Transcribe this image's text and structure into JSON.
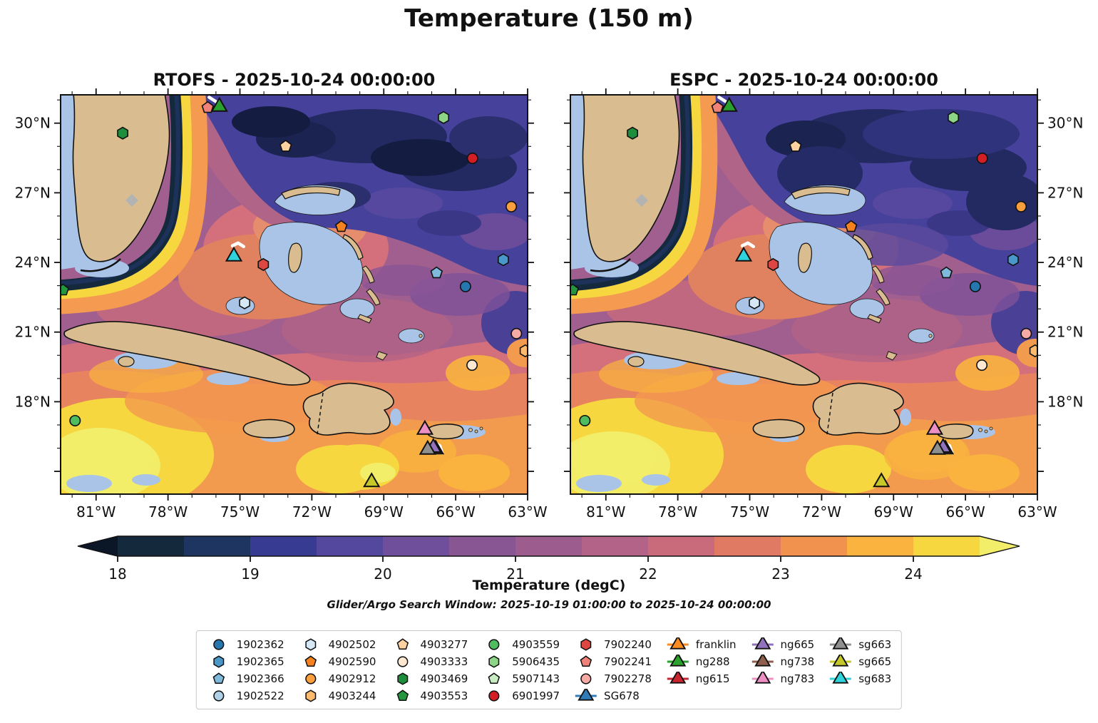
{
  "title": "Temperature (150 m)",
  "panels": [
    {
      "id": "rtofs",
      "title": "RTOFS - 2025-10-24 00:00:00",
      "ylabel_side": "left"
    },
    {
      "id": "espc",
      "title": "ESPC - 2025-10-24 00:00:00",
      "ylabel_side": "right"
    }
  ],
  "axes": {
    "lon_min": 63.0,
    "lon_max": 82.48,
    "lat_top": 31.22,
    "lat_span": 17.2,
    "x_ticks": [
      {
        "deg": 81,
        "label": "81°W"
      },
      {
        "deg": 78,
        "label": "78°W"
      },
      {
        "deg": 75,
        "label": "75°W"
      },
      {
        "deg": 72,
        "label": "72°W"
      },
      {
        "deg": 69,
        "label": "69°W"
      },
      {
        "deg": 66,
        "label": "66°W"
      },
      {
        "deg": 63,
        "label": "63°W"
      }
    ],
    "y_ticks": [
      {
        "deg": 30,
        "label": "30°N"
      },
      {
        "deg": 27,
        "label": "27°N"
      },
      {
        "deg": 24,
        "label": "24°N"
      },
      {
        "deg": 21,
        "label": "21°N"
      },
      {
        "deg": 18,
        "label": "18°N"
      }
    ]
  },
  "colorbar": {
    "label": "Temperature (degC)",
    "ticks": [
      "18",
      "19",
      "20",
      "21",
      "22",
      "23",
      "24"
    ],
    "tick_values": [
      18,
      19,
      20,
      21,
      22,
      23,
      24
    ],
    "segment_start": 18.0,
    "segment_step": 0.5,
    "segments": [
      "#15293d",
      "#1e3562",
      "#383b92",
      "#54489e",
      "#6f4f9b",
      "#875693",
      "#9c5c8e",
      "#b36387",
      "#c96b7b",
      "#e07a63",
      "#f2924f",
      "#f9b33e",
      "#f6d73f"
    ],
    "under_color": "#0b1627",
    "over_color": "#f2ee6a"
  },
  "subtitle": "Glider/Argo Search Window: 2025-10-19 01:00:00 to 2025-10-24 00:00:00",
  "platforms": [
    {
      "id": "1902362",
      "label": "1902362",
      "shape": "circle",
      "color": "#2676b0",
      "glider": false,
      "fx": 0.867,
      "fy": 0.48
    },
    {
      "id": "1902365",
      "label": "1902365",
      "shape": "hexagon",
      "color": "#4a97c9",
      "glider": false,
      "fx": 0.948,
      "fy": 0.413
    },
    {
      "id": "1902366",
      "label": "1902366",
      "shape": "pentagon",
      "color": "#7fb9dc",
      "glider": false,
      "fx": 0.805,
      "fy": 0.446
    },
    {
      "id": "1902522",
      "label": "1902522",
      "shape": "circle",
      "color": "#aed1e7",
      "glider": false,
      "fx": null,
      "fy": null
    },
    {
      "id": "4902502",
      "label": "4902502",
      "shape": "hexagon",
      "color": "#d6e8f5",
      "glider": false,
      "fx": 0.394,
      "fy": 0.521
    },
    {
      "id": "4902590",
      "label": "4902590",
      "shape": "pentagon",
      "color": "#f5821e",
      "glider": false,
      "fx": 0.601,
      "fy": 0.33
    },
    {
      "id": "4902912",
      "label": "4902912",
      "shape": "circle",
      "color": "#fa9f3d",
      "glider": false,
      "fx": 0.965,
      "fy": 0.28
    },
    {
      "id": "4903244",
      "label": "4903244",
      "shape": "hexagon",
      "color": "#fcba6c",
      "glider": false,
      "fx": 0.995,
      "fy": 0.641
    },
    {
      "id": "4903277",
      "label": "4903277",
      "shape": "pentagon",
      "color": "#fdd2a0",
      "glider": false,
      "fx": 0.482,
      "fy": 0.129
    },
    {
      "id": "4903333",
      "label": "4903333",
      "shape": "circle",
      "color": "#fee8d1",
      "glider": false,
      "fx": 0.881,
      "fy": 0.677
    },
    {
      "id": "4903469",
      "label": "4903469",
      "shape": "hexagon",
      "color": "#1d8f3c",
      "glider": false,
      "fx": 0.133,
      "fy": 0.096
    },
    {
      "id": "4903553",
      "label": "4903553",
      "shape": "pentagon",
      "color": "#23963f",
      "glider": false,
      "fx": 0.005,
      "fy": 0.489
    },
    {
      "id": "4903559",
      "label": "4903559",
      "shape": "circle",
      "color": "#4fbc5f",
      "glider": false,
      "fx": 0.031,
      "fy": 0.816
    },
    {
      "id": "5906435",
      "label": "5906435",
      "shape": "hexagon",
      "color": "#8ed687",
      "glider": false,
      "fx": 0.82,
      "fy": 0.057
    },
    {
      "id": "5907143",
      "label": "5907143",
      "shape": "pentagon",
      "color": "#c9ecc4",
      "glider": false,
      "fx": null,
      "fy": null
    },
    {
      "id": "6901997",
      "label": "6901997",
      "shape": "circle",
      "color": "#d21e24",
      "glider": false,
      "fx": 0.882,
      "fy": 0.159
    },
    {
      "id": "7902240",
      "label": "7902240",
      "shape": "hexagon",
      "color": "#dd4743",
      "glider": false,
      "fx": 0.434,
      "fy": 0.425
    },
    {
      "id": "7902241",
      "label": "7902241",
      "shape": "pentagon",
      "color": "#f08379",
      "glider": false,
      "fx": 0.315,
      "fy": 0.032
    },
    {
      "id": "7902278",
      "label": "7902278",
      "shape": "circle",
      "color": "#f6aaa6",
      "glider": false,
      "fx": 0.976,
      "fy": 0.598
    },
    {
      "id": "SG678",
      "label": "SG678",
      "shape": "triangle",
      "color": "#2f7cb8",
      "glider": true,
      "fx": null,
      "fy": null
    },
    {
      "id": "franklin",
      "label": "franklin",
      "shape": "triangle",
      "color": "#fb8c1d",
      "glider": true,
      "fx": null,
      "fy": null
    },
    {
      "id": "ng288",
      "label": "ng288",
      "shape": "triangle",
      "color": "#2aa02e",
      "glider": true,
      "fx": 0.34,
      "fy": 0.03
    },
    {
      "id": "ng615",
      "label": "ng615",
      "shape": "triangle",
      "color": "#ca2430",
      "glider": true,
      "fx": null,
      "fy": null
    },
    {
      "id": "sg683",
      "label": "sg683",
      "shape": "triangle",
      "color": "#30d2dc",
      "glider": true,
      "fx": 0.371,
      "fy": 0.405
    },
    {
      "id": "ng783",
      "label": "ng783",
      "shape": "triangle",
      "color": "#ee8fc4",
      "glider": true,
      "fx": 0.78,
      "fy": 0.839
    },
    {
      "id": "ng738",
      "label": "ng738",
      "shape": "triangle",
      "color": "#90604e",
      "glider": true,
      "fx": 0.803,
      "fy": 0.888
    },
    {
      "id": "ng665",
      "label": "ng665",
      "shape": "triangle",
      "color": "#9372bd",
      "glider": true,
      "fx": 0.798,
      "fy": 0.884
    },
    {
      "id": "sg663",
      "label": "sg663",
      "shape": "triangle",
      "color": "#909090",
      "glider": true,
      "fx": 0.786,
      "fy": 0.889
    },
    {
      "id": "sg665",
      "label": "sg665",
      "shape": "triangle",
      "color": "#c6c728",
      "glider": true,
      "fx": 0.666,
      "fy": 0.97
    }
  ],
  "trails": [
    [
      [
        0.318,
        0.006
      ],
      [
        0.334,
        0.018
      ]
    ],
    [
      [
        0.368,
        0.378
      ],
      [
        0.38,
        0.371
      ],
      [
        0.392,
        0.38
      ]
    ],
    [
      [
        0.796,
        0.868
      ],
      [
        0.812,
        0.879
      ],
      [
        0.817,
        0.897
      ]
    ]
  ],
  "legend": {
    "columns": [
      [
        "1902362",
        "1902365",
        "1902366",
        "1902522"
      ],
      [
        "4902502",
        "4902590",
        "4902912",
        "4903244"
      ],
      [
        "4903277",
        "4903333",
        "4903469",
        "4903553"
      ],
      [
        "4903559",
        "5906435",
        "5907143",
        "6901997"
      ],
      [
        "7902240",
        "7902241",
        "7902278",
        "SG678"
      ],
      [
        "franklin",
        "ng288",
        "ng615"
      ],
      [
        "ng665",
        "ng738",
        "ng783"
      ],
      [
        "sg663",
        "sg665",
        "sg683"
      ]
    ]
  },
  "chart_data": {
    "type": "heatmap",
    "subtype": "filled-contour ocean temperature maps, two-model comparison",
    "variable": "Temperature",
    "units": "degC",
    "depth_m": 150,
    "valid_time": "2025-10-24 00:00:00",
    "models": [
      "RTOFS",
      "ESPC"
    ],
    "lon_range_degW": [
      82.5,
      63.0
    ],
    "lat_range_degN": [
      14.0,
      31.2
    ],
    "x_tick_labels": [
      "81°W",
      "78°W",
      "75°W",
      "72°W",
      "69°W",
      "66°W",
      "63°W"
    ],
    "y_tick_labels": [
      "30°N",
      "27°N",
      "24°N",
      "21°N",
      "18°N"
    ],
    "colorbar": {
      "min": 18,
      "max": 24.5,
      "interval": 0.5,
      "extend": "both",
      "ticks": [
        18,
        19,
        20,
        21,
        22,
        23,
        24
      ],
      "label": "Temperature (degC)"
    },
    "search_window": "2025-10-19 01:00:00 to 2025-10-24 00:00:00",
    "platform_positions_approx": [
      {
        "id": "7902241",
        "type": "argo",
        "lon_degW": 76.3,
        "lat_degN": 30.7
      },
      {
        "id": "ng288",
        "type": "glider",
        "lon_degW": 75.9,
        "lat_degN": 30.7
      },
      {
        "id": "4903469",
        "type": "argo",
        "lon_degW": 79.9,
        "lat_degN": 29.6
      },
      {
        "id": "5906435",
        "type": "argo",
        "lon_degW": 66.5,
        "lat_degN": 30.2
      },
      {
        "id": "4903277",
        "type": "argo",
        "lon_degW": 73.1,
        "lat_degN": 29.0
      },
      {
        "id": "6901997",
        "type": "argo",
        "lon_degW": 65.3,
        "lat_degN": 28.5
      },
      {
        "id": "4902912",
        "type": "argo",
        "lon_degW": 63.7,
        "lat_degN": 26.4
      },
      {
        "id": "4902590",
        "type": "argo",
        "lon_degW": 70.8,
        "lat_degN": 25.5
      },
      {
        "id": "sg683",
        "type": "glider",
        "lon_degW": 75.3,
        "lat_degN": 24.3
      },
      {
        "id": "7902240",
        "type": "argo",
        "lon_degW": 74.0,
        "lat_degN": 23.9
      },
      {
        "id": "1902365",
        "type": "argo",
        "lon_degW": 64.0,
        "lat_degN": 24.1
      },
      {
        "id": "1902366",
        "type": "argo",
        "lon_degW": 66.8,
        "lat_degN": 23.5
      },
      {
        "id": "1902362",
        "type": "argo",
        "lon_degW": 65.6,
        "lat_degN": 23.0
      },
      {
        "id": "4903553",
        "type": "argo",
        "lon_degW": 82.4,
        "lat_degN": 22.8
      },
      {
        "id": "4902502",
        "type": "argo",
        "lon_degW": 74.8,
        "lat_degN": 22.3
      },
      {
        "id": "7902278",
        "type": "argo",
        "lon_degW": 63.5,
        "lat_degN": 20.9
      },
      {
        "id": "4903244",
        "type": "argo",
        "lon_degW": 63.1,
        "lat_degN": 20.2
      },
      {
        "id": "4903333",
        "type": "argo",
        "lon_degW": 65.3,
        "lat_degN": 19.6
      },
      {
        "id": "4903559",
        "type": "argo",
        "lon_degW": 81.9,
        "lat_degN": 17.2
      },
      {
        "id": "ng783",
        "type": "glider",
        "lon_degW": 67.3,
        "lat_degN": 17.0
      },
      {
        "id": "ng738",
        "type": "glider",
        "lon_degW": 66.8,
        "lat_degN": 16.0
      },
      {
        "id": "ng665",
        "type": "glider",
        "lon_degW": 66.9,
        "lat_degN": 16.0
      },
      {
        "id": "sg663",
        "type": "glider",
        "lon_degW": 67.2,
        "lat_degN": 15.9
      },
      {
        "id": "sg665",
        "type": "glider",
        "lon_degW": 69.5,
        "lat_degN": 14.5
      }
    ]
  }
}
